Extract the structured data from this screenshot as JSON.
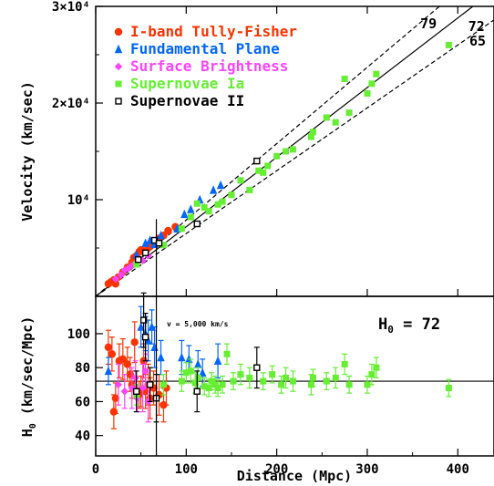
{
  "chart_data": [
    {
      "type": "scatter",
      "panel": "top",
      "xlabel": "",
      "ylabel": "Velocity (km/sec)",
      "xlim": [
        0,
        440
      ],
      "ylim": [
        0,
        30000
      ],
      "y_tick_labels": [
        "10⁴",
        "2×10⁴",
        "3×10⁴"
      ],
      "y_tick_values": [
        10000,
        20000,
        30000
      ],
      "legend_position": "top-left",
      "legend": [
        {
          "label": "I-band Tully-Fisher",
          "color": "#ff3300",
          "marker": "circle"
        },
        {
          "label": "Fundamental Plane",
          "color": "#0066ff",
          "marker": "triangle"
        },
        {
          "label": "Surface Brightness",
          "color": "#ff44ff",
          "marker": "diamond"
        },
        {
          "label": "Supernovae Ia",
          "color": "#66ee33",
          "marker": "square"
        },
        {
          "label": "Supernovae II",
          "color": "#000000",
          "marker": "open-square"
        }
      ],
      "lines": [
        {
          "label": "79",
          "slope": 79
        },
        {
          "label": "72",
          "slope": 72
        },
        {
          "label": "65",
          "slope": 65
        }
      ],
      "series": [
        {
          "name": "I-band Tully-Fisher",
          "color": "#ff3300",
          "marker": "circle",
          "points": [
            [
              14,
              1300
            ],
            [
              17,
              1500
            ],
            [
              20,
              1700
            ],
            [
              22,
              1300
            ],
            [
              25,
              2000
            ],
            [
              30,
              2500
            ],
            [
              35,
              3000
            ],
            [
              40,
              3500
            ],
            [
              42,
              4000
            ],
            [
              45,
              4200
            ],
            [
              48,
              4600
            ],
            [
              50,
              4800
            ],
            [
              55,
              4700
            ],
            [
              58,
              5000
            ],
            [
              62,
              5300
            ],
            [
              65,
              5700
            ],
            [
              70,
              6000
            ],
            [
              75,
              6300
            ],
            [
              80,
              6800
            ],
            [
              88,
              7200
            ]
          ]
        },
        {
          "name": "Fundamental Plane",
          "color": "#0066ff",
          "marker": "triangle",
          "points": [
            [
              45,
              4300
            ],
            [
              55,
              5500
            ],
            [
              60,
              5800
            ],
            [
              65,
              5400
            ],
            [
              72,
              6300
            ],
            [
              90,
              7000
            ],
            [
              98,
              8500
            ],
            [
              105,
              9000
            ],
            [
              115,
              10000
            ],
            [
              130,
              11000
            ],
            [
              138,
              11500
            ]
          ]
        },
        {
          "name": "Surface Brightness",
          "color": "#ff44ff",
          "marker": "diamond",
          "points": [
            [
              22,
              1800
            ],
            [
              28,
              2200
            ],
            [
              32,
              2700
            ],
            [
              36,
              2900
            ],
            [
              40,
              3200
            ],
            [
              45,
              3500
            ],
            [
              52,
              3700
            ],
            [
              58,
              4200
            ]
          ]
        },
        {
          "name": "Supernovae Ia",
          "color": "#66ee33",
          "marker": "square",
          "points": [
            [
              45,
              3300
            ],
            [
              75,
              5300
            ],
            [
              95,
              7000
            ],
            [
              105,
              8200
            ],
            [
              112,
              9600
            ],
            [
              120,
              9200
            ],
            [
              125,
              8800
            ],
            [
              135,
              9500
            ],
            [
              140,
              9800
            ],
            [
              150,
              10500
            ],
            [
              160,
              12000
            ],
            [
              170,
              11000
            ],
            [
              180,
              13000
            ],
            [
              185,
              12800
            ],
            [
              190,
              13500
            ],
            [
              200,
              14500
            ],
            [
              210,
              15000
            ],
            [
              218,
              15200
            ],
            [
              238,
              16500
            ],
            [
              240,
              17000
            ],
            [
              255,
              18500
            ],
            [
              265,
              18000
            ],
            [
              280,
              19000
            ],
            [
              300,
              21000
            ],
            [
              305,
              22000
            ],
            [
              310,
              23000
            ],
            [
              275,
              22500
            ],
            [
              390,
              26000
            ]
          ]
        },
        {
          "name": "Supernovae II",
          "color": "#000000",
          "marker": "open-square",
          "points": [
            [
              47,
              3800
            ],
            [
              55,
              4500
            ],
            [
              65,
              5800
            ],
            [
              70,
              5500
            ],
            [
              112,
              7500
            ],
            [
              178,
              14000
            ]
          ]
        }
      ]
    },
    {
      "type": "scatter",
      "panel": "bottom",
      "xlabel": "Distance (Mpc)",
      "ylabel": "H0 (km/sec/Mpc)",
      "ylabel_parts": {
        "main": "H",
        "sub": "0",
        "rest": " (km/sec/Mpc)"
      },
      "xlim": [
        0,
        440
      ],
      "ylim": [
        28,
        122
      ],
      "x_ticks": [
        0,
        100,
        200,
        300,
        400
      ],
      "y_ticks": [
        40,
        60,
        80,
        100
      ],
      "reference_line": {
        "y": 72
      },
      "annotation": {
        "label": "H",
        "sub": "0",
        "rest": " = 72"
      },
      "vertical_marker": {
        "x": 67,
        "label": "v = 5,000 km/s"
      },
      "series": [
        {
          "name": "I-band Tully-Fisher",
          "color": "#ff3300",
          "marker": "circle",
          "points": [
            [
              14,
              92,
              10
            ],
            [
              18,
              88,
              10
            ],
            [
              20,
              54,
              10
            ],
            [
              22,
              62,
              9
            ],
            [
              26,
              84,
              10
            ],
            [
              30,
              85,
              12
            ],
            [
              35,
              82,
              10
            ],
            [
              38,
              76,
              10
            ],
            [
              40,
              70,
              8
            ],
            [
              43,
              95,
              12
            ],
            [
              48,
              64,
              8
            ],
            [
              50,
              66,
              9
            ],
            [
              53,
              84,
              10
            ],
            [
              55,
              66,
              10
            ],
            [
              58,
              70,
              12
            ],
            [
              60,
              62,
              12
            ],
            [
              64,
              68,
              10
            ],
            [
              70,
              64,
              12
            ],
            [
              75,
              58,
              10
            ],
            [
              78,
              68,
              10
            ]
          ]
        },
        {
          "name": "Fundamental Plane",
          "color": "#0066ff",
          "marker": "triangle",
          "points": [
            [
              14,
              78,
              8
            ],
            [
              50,
              104,
              12
            ],
            [
              55,
              100,
              10
            ],
            [
              58,
              96,
              12
            ],
            [
              62,
              104,
              10
            ],
            [
              65,
              92,
              12
            ],
            [
              72,
              86,
              10
            ],
            [
              95,
              86,
              10
            ],
            [
              103,
              85,
              8
            ],
            [
              113,
              82,
              8
            ],
            [
              118,
              77,
              8
            ],
            [
              135,
              84,
              10
            ]
          ]
        },
        {
          "name": "Surface Brightness",
          "color": "#ff44ff",
          "marker": "diamond",
          "points": [
            [
              25,
              70,
              12
            ],
            [
              32,
              66,
              10
            ],
            [
              40,
              68,
              12
            ],
            [
              44,
              74,
              10
            ],
            [
              46,
              62,
              8
            ],
            [
              52,
              68,
              14
            ],
            [
              55,
              78,
              10
            ],
            [
              58,
              60,
              12
            ]
          ]
        },
        {
          "name": "Supernovae Ia",
          "color": "#66ee33",
          "marker": "square",
          "points": [
            [
              45,
              64,
              6
            ],
            [
              75,
              70,
              6
            ],
            [
              95,
              72,
              6
            ],
            [
              100,
              77,
              6
            ],
            [
              105,
              78,
              7
            ],
            [
              110,
              71,
              6
            ],
            [
              113,
              74,
              6
            ],
            [
              120,
              69,
              5
            ],
            [
              125,
              68,
              5
            ],
            [
              128,
              72,
              5
            ],
            [
              132,
              70,
              5
            ],
            [
              135,
              68,
              5
            ],
            [
              140,
              70,
              5
            ],
            [
              145,
              88,
              6
            ],
            [
              152,
              72,
              5
            ],
            [
              160,
              76,
              6
            ],
            [
              170,
              74,
              6
            ],
            [
              185,
              72,
              5
            ],
            [
              195,
              76,
              5
            ],
            [
              205,
              70,
              5
            ],
            [
              210,
              74,
              6
            ],
            [
              218,
              72,
              6
            ],
            [
              238,
              70,
              6
            ],
            [
              240,
              74,
              5
            ],
            [
              255,
              72,
              5
            ],
            [
              265,
              74,
              6
            ],
            [
              275,
              82,
              6
            ],
            [
              280,
              70,
              5
            ],
            [
              300,
              70,
              5
            ],
            [
              305,
              76,
              6
            ],
            [
              310,
              80,
              6
            ],
            [
              390,
              68,
              5
            ]
          ]
        },
        {
          "name": "Supernovae II",
          "color": "#000000",
          "marker": "open-square",
          "points": [
            [
              45,
              66,
              12
            ],
            [
              53,
              108,
              16
            ],
            [
              55,
              98,
              14
            ],
            [
              60,
              70,
              10
            ],
            [
              67,
              62,
              14
            ],
            [
              112,
              66,
              12
            ],
            [
              178,
              80,
              12
            ]
          ]
        }
      ]
    }
  ]
}
